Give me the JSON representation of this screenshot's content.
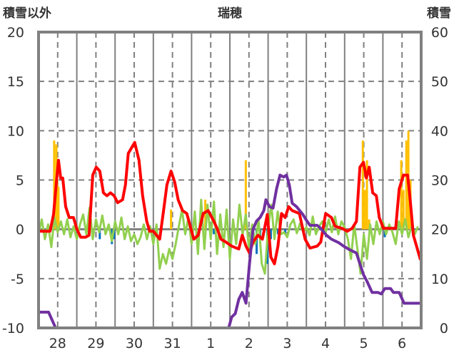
{
  "chart_data": {
    "type": "bar+line",
    "title": "瑞穂",
    "ylabel_left": "積雪以外",
    "ylabel_right": "積雪",
    "ylim_left": [
      -10,
      20
    ],
    "ylim_right": [
      0,
      60
    ],
    "yticks_left": [
      "20",
      "15",
      "10",
      "5",
      "0",
      "-5",
      "-10"
    ],
    "yticks_right": [
      "60",
      "50",
      "40",
      "30",
      "20",
      "10",
      "0"
    ],
    "x_unit": "hours since day 28 00:00",
    "xlim": [
      0,
      240
    ],
    "xtick_labels": [
      "28",
      "29",
      "30",
      "31",
      "1",
      "2",
      "3",
      "4",
      "5",
      "6"
    ],
    "grid": true,
    "colors": {
      "red": "#FF0000",
      "green": "#92D050",
      "purple": "#7030A0",
      "orange": "#FFC000",
      "blue": "#0070C0",
      "grid": "#808080"
    },
    "bars": [
      {
        "name": "orange",
        "axis": "left",
        "points": [
          [
            9.8,
            9
          ],
          [
            11.2,
            8.6
          ],
          [
            11.6,
            6
          ],
          [
            12.5,
            4.3
          ],
          [
            83.1,
            2
          ],
          [
            104.6,
            3
          ],
          [
            130,
            7
          ],
          [
            203.4,
            9
          ],
          [
            204.7,
            4
          ],
          [
            206,
            7
          ],
          [
            207.4,
            1
          ],
          [
            227.5,
            7
          ],
          [
            228.9,
            4
          ],
          [
            230.7,
            9
          ],
          [
            232,
            10
          ],
          [
            233.3,
            5
          ]
        ]
      },
      {
        "name": "blue",
        "axis": "left",
        "points": [
          [
            38.4,
            -1
          ],
          [
            46,
            -1.5
          ],
          [
            47.4,
            -1
          ],
          [
            110,
            -0.5
          ],
          [
            134.5,
            -1.5
          ],
          [
            136.8,
            -2.5
          ],
          [
            139,
            -1
          ],
          [
            143.5,
            -3.5
          ],
          [
            145.7,
            -1
          ],
          [
            150.2,
            -0.5
          ],
          [
            154.7,
            -0.5
          ],
          [
            217.2,
            -0.8
          ]
        ]
      }
    ],
    "series": [
      {
        "name": "green",
        "axis": "left",
        "step": 2,
        "start": 0,
        "values": [
          -0.5,
          1,
          -1,
          0.5,
          -1.8,
          1.2,
          -0.3,
          0.8,
          -0.5,
          1,
          -0.8,
          0.3,
          -1,
          0.5,
          1.5,
          -0.5,
          2.2,
          -1,
          1,
          -0.3,
          1.4,
          -0.5,
          0.5,
          -1.2,
          0.8,
          -0.5,
          1.2,
          -1,
          0.3,
          -1.2,
          -0.5,
          -1.5,
          -0.8,
          0.5,
          -1,
          0.3,
          -1.5,
          0.5,
          -4,
          -2.5,
          -3.5,
          -2,
          -3,
          -1.5,
          0.3,
          2,
          -0.5,
          1.2,
          -1.5,
          1.8,
          -2.5,
          3,
          -2,
          2.5,
          -1,
          2.8,
          -2.5,
          1.5,
          -1.8,
          2,
          -3,
          1,
          -1.5,
          2.5,
          -0.5,
          1.5,
          -2,
          0.5,
          -1.5,
          1,
          -3.5,
          -4.5,
          0.2,
          2.5,
          -1,
          1.8,
          -0.5,
          -0.3,
          -0.8,
          0.5,
          1,
          -0.4,
          0.6,
          -0.3,
          0.2,
          -0.6,
          1.3,
          -0.5,
          0.3,
          0.8,
          -0.4,
          1,
          -0.3,
          1.3,
          -0.5,
          0.8,
          0.2,
          -1,
          -3,
          0.5,
          -2,
          -4.5,
          -0.5,
          -3,
          0.5,
          -1.5,
          0.8,
          -0.5,
          0.8,
          -0.5,
          0.5,
          -0.3,
          -1.5,
          0.8,
          -0.5,
          1,
          -0.8,
          0.3,
          -0.5,
          0.3
        ]
      },
      {
        "name": "red",
        "axis": "left",
        "points": [
          [
            0,
            -0.2
          ],
          [
            7.2,
            -0.2
          ],
          [
            9.4,
            1.5
          ],
          [
            11.6,
            5.5
          ],
          [
            12.5,
            7
          ],
          [
            13.9,
            5.2
          ],
          [
            15.2,
            5.2
          ],
          [
            17,
            2.3
          ],
          [
            19.2,
            1.2
          ],
          [
            21.9,
            1.2
          ],
          [
            24.1,
            0
          ],
          [
            26.4,
            -0.8
          ],
          [
            29.5,
            -0.8
          ],
          [
            31.7,
            -0.6
          ],
          [
            34,
            5.5
          ],
          [
            36.2,
            6.3
          ],
          [
            38.4,
            5.9
          ],
          [
            40.7,
            3.7
          ],
          [
            42.9,
            3.4
          ],
          [
            45.1,
            3.7
          ],
          [
            47.4,
            3.4
          ],
          [
            49.6,
            2.7
          ],
          [
            52.7,
            3
          ],
          [
            54.5,
            4.5
          ],
          [
            56.3,
            7.7
          ],
          [
            60.3,
            8.8
          ],
          [
            63,
            7
          ],
          [
            65.3,
            3.4
          ],
          [
            67.9,
            0.8
          ],
          [
            69.7,
            -0.2
          ],
          [
            72,
            -0.2
          ],
          [
            76,
            -1
          ],
          [
            78.2,
            1.6
          ],
          [
            80.5,
            4.5
          ],
          [
            83.1,
            5.9
          ],
          [
            85.4,
            4.8
          ],
          [
            87.6,
            3
          ],
          [
            90.3,
            1.9
          ],
          [
            93,
            1.6
          ],
          [
            95.7,
            0
          ],
          [
            97.4,
            -1
          ],
          [
            100.1,
            -0.6
          ],
          [
            103.3,
            1.6
          ],
          [
            106.4,
            1.9
          ],
          [
            110,
            0.8
          ],
          [
            112.2,
            0
          ],
          [
            114.4,
            -1
          ],
          [
            117.6,
            -1.3
          ],
          [
            121.1,
            -1.7
          ],
          [
            125.6,
            -2
          ],
          [
            127.8,
            -0.6
          ],
          [
            130.1,
            -1.7
          ],
          [
            132.3,
            -2.4
          ],
          [
            134.5,
            -1.3
          ],
          [
            137.7,
            -0.6
          ],
          [
            140.4,
            -1
          ],
          [
            143.5,
            1.5
          ],
          [
            145.7,
            -2.8
          ],
          [
            148,
            -3.5
          ],
          [
            150.2,
            -1.7
          ],
          [
            152.4,
            1.6
          ],
          [
            154.7,
            1.2
          ],
          [
            156.9,
            2.3
          ],
          [
            159.1,
            1.9
          ],
          [
            163.6,
            1.6
          ],
          [
            167.2,
            -1
          ],
          [
            170.3,
            -1.9
          ],
          [
            174.8,
            -1.7
          ],
          [
            177,
            -1.3
          ],
          [
            180.1,
            1.6
          ],
          [
            183.7,
            1.2
          ],
          [
            186,
            0.3
          ],
          [
            190.4,
            0.1
          ],
          [
            193.6,
            -0.2
          ],
          [
            196.7,
            0.1
          ],
          [
            199.4,
            0.8
          ],
          [
            201.6,
            6.3
          ],
          [
            203.8,
            6.8
          ],
          [
            205.6,
            5.2
          ],
          [
            207.4,
            6.3
          ],
          [
            209.6,
            3.7
          ],
          [
            211.9,
            3.4
          ],
          [
            213.7,
            1.2
          ],
          [
            216.3,
            0.1
          ],
          [
            220.8,
            0.1
          ],
          [
            224,
            0.1
          ],
          [
            226.2,
            4.1
          ],
          [
            228.9,
            5.5
          ],
          [
            231.5,
            5.5
          ],
          [
            232.9,
            3.4
          ],
          [
            235.1,
            -0.6
          ],
          [
            239.6,
            -3.1
          ]
        ]
      },
      {
        "name": "purple",
        "axis": "right",
        "points": [
          [
            0,
            3.2
          ],
          [
            6.3,
            3.2
          ],
          [
            10.7,
            0
          ],
          [
            119.3,
            0
          ],
          [
            121.1,
            2.2
          ],
          [
            123.4,
            2.9
          ],
          [
            125.6,
            5.8
          ],
          [
            127.8,
            7.2
          ],
          [
            130.1,
            5
          ],
          [
            132.3,
            13
          ],
          [
            134.5,
            20
          ],
          [
            136.8,
            21.7
          ],
          [
            139,
            22.4
          ],
          [
            141.3,
            23.8
          ],
          [
            142.6,
            26
          ],
          [
            144.8,
            24.6
          ],
          [
            147.1,
            24.3
          ],
          [
            149.3,
            28.2
          ],
          [
            151.5,
            31
          ],
          [
            153.8,
            30.6
          ],
          [
            155.5,
            31
          ],
          [
            157.3,
            29
          ],
          [
            159.1,
            25.3
          ],
          [
            161.8,
            24.6
          ],
          [
            165.8,
            23
          ],
          [
            168.1,
            21.8
          ],
          [
            170.3,
            20.8
          ],
          [
            174.8,
            20.8
          ],
          [
            177,
            20.2
          ],
          [
            180.6,
            18.8
          ],
          [
            183.7,
            18
          ],
          [
            188.2,
            17.3
          ],
          [
            191.3,
            16.6
          ],
          [
            194.9,
            15.9
          ],
          [
            199.4,
            15.2
          ],
          [
            201.6,
            13
          ],
          [
            203.8,
            10.8
          ],
          [
            206.1,
            9.4
          ],
          [
            209.2,
            7.2
          ],
          [
            212.8,
            7.2
          ],
          [
            215,
            6.9
          ],
          [
            217.2,
            8
          ],
          [
            220.8,
            8
          ],
          [
            222.6,
            7.2
          ],
          [
            226.2,
            7.2
          ],
          [
            229.3,
            5
          ],
          [
            240,
            5
          ]
        ]
      }
    ]
  }
}
